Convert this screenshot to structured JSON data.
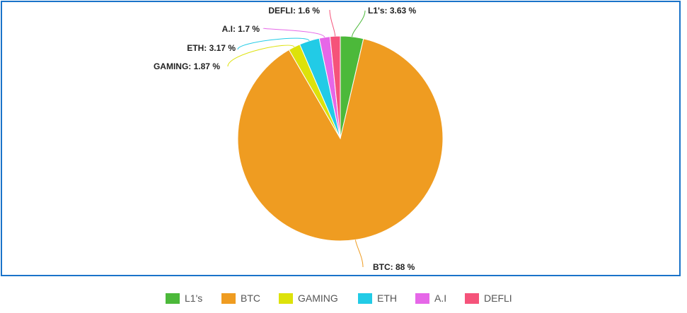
{
  "chart_data": {
    "type": "pie",
    "title": "",
    "legend_position": "bottom",
    "slices": [
      {
        "name": "L1's",
        "value": 3.63,
        "color": "#4cb93a",
        "label": "L1's: 3.63 %"
      },
      {
        "name": "BTC",
        "value": 88,
        "color": "#ef9c21",
        "label": "BTC: 88 %"
      },
      {
        "name": "GAMING",
        "value": 1.87,
        "color": "#dde20a",
        "label": "GAMING: 1.87 %"
      },
      {
        "name": "ETH",
        "value": 3.17,
        "color": "#22cbe6",
        "label": "ETH: 3.17 %"
      },
      {
        "name": "A.I",
        "value": 1.7,
        "color": "#e667e8",
        "label": "A.I: 1.7 %"
      },
      {
        "name": "DEFLI",
        "value": 1.6,
        "color": "#f5537a",
        "label": "DEFLI: 1.6 %"
      }
    ]
  },
  "legend": {
    "items": [
      "L1's",
      "BTC",
      "GAMING",
      "ETH",
      "A.I",
      "DEFLI"
    ]
  }
}
